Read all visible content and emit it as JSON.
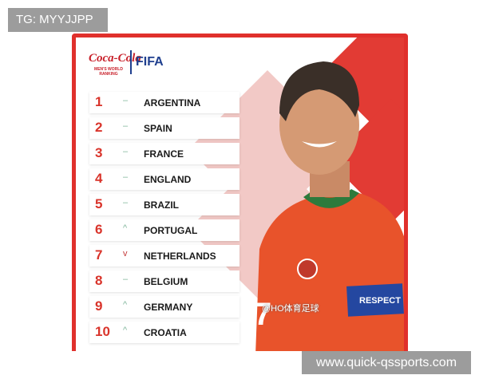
{
  "overlay_tag": "TG: MYYJJPP",
  "site_watermark": "www.quick-qssports.com",
  "weibo_watermark": "@HO体育足球",
  "card": {
    "brand": "Coca-Cola",
    "subtitle": "MEN'S WORLD RANKING",
    "fifa": "FIFA",
    "accent_color": "#e0302c",
    "rankings": [
      {
        "rank": "1",
        "move": "same",
        "team": "ARGENTINA"
      },
      {
        "rank": "2",
        "move": "same",
        "team": "SPAIN"
      },
      {
        "rank": "3",
        "move": "same",
        "team": "FRANCE"
      },
      {
        "rank": "4",
        "move": "same",
        "team": "ENGLAND"
      },
      {
        "rank": "5",
        "move": "same",
        "team": "BRAZIL"
      },
      {
        "rank": "6",
        "move": "up",
        "team": "PORTUGAL"
      },
      {
        "rank": "7",
        "move": "down",
        "team": "NETHERLANDS"
      },
      {
        "rank": "8",
        "move": "same",
        "team": "BELGIUM"
      },
      {
        "rank": "9",
        "move": "up",
        "team": "GERMANY"
      },
      {
        "rank": "10",
        "move": "up",
        "team": "CROATIA"
      }
    ],
    "armband_text": "RESPECT",
    "jersey_number": "7"
  }
}
